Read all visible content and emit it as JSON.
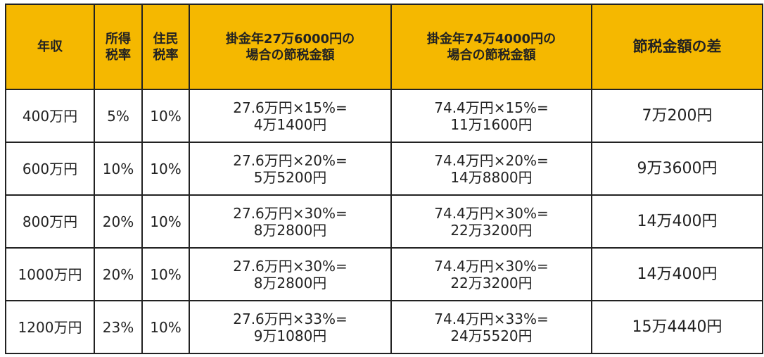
{
  "table": {
    "header": [
      [
        "年収"
      ],
      [
        "所得",
        "税率"
      ],
      [
        "住民",
        "税率"
      ],
      [
        "掛金年27万6000円の",
        "場合の節税金額"
      ],
      [
        "掛金年74万4000円の",
        "場合の節税金額"
      ],
      [
        "節税金額の差"
      ]
    ],
    "rows": [
      [
        [
          "400万円"
        ],
        [
          "5%"
        ],
        [
          "10%"
        ],
        [
          "27.6万円×15%=",
          "4万1400円"
        ],
        [
          "74.4万円×15%=",
          "11万1600円"
        ],
        [
          "7万200円"
        ]
      ],
      [
        [
          "600万円"
        ],
        [
          "10%"
        ],
        [
          "10%"
        ],
        [
          "27.6万円×20%=",
          "5万5200円"
        ],
        [
          "74.4万円×20%=",
          "14万8800円"
        ],
        [
          "9万3600円"
        ]
      ],
      [
        [
          "800万円"
        ],
        [
          "20%"
        ],
        [
          "10%"
        ],
        [
          "27.6万円×30%=",
          "8万2800円"
        ],
        [
          "74.4万円×30%=",
          "22万3200円"
        ],
        [
          "14万400円"
        ]
      ],
      [
        [
          "1000万円"
        ],
        [
          "20%"
        ],
        [
          "10%"
        ],
        [
          "27.6万円×30%=",
          "8万2800円"
        ],
        [
          "74.4万円×30%=",
          "22万3200円"
        ],
        [
          "14万400円"
        ]
      ],
      [
        [
          "1200万円"
        ],
        [
          "23%"
        ],
        [
          "10%"
        ],
        [
          "27.6万円×33%=",
          "9万1080円"
        ],
        [
          "74.4万円×33%=",
          "24万5520円"
        ],
        [
          "15万4440円"
        ]
      ]
    ]
  }
}
